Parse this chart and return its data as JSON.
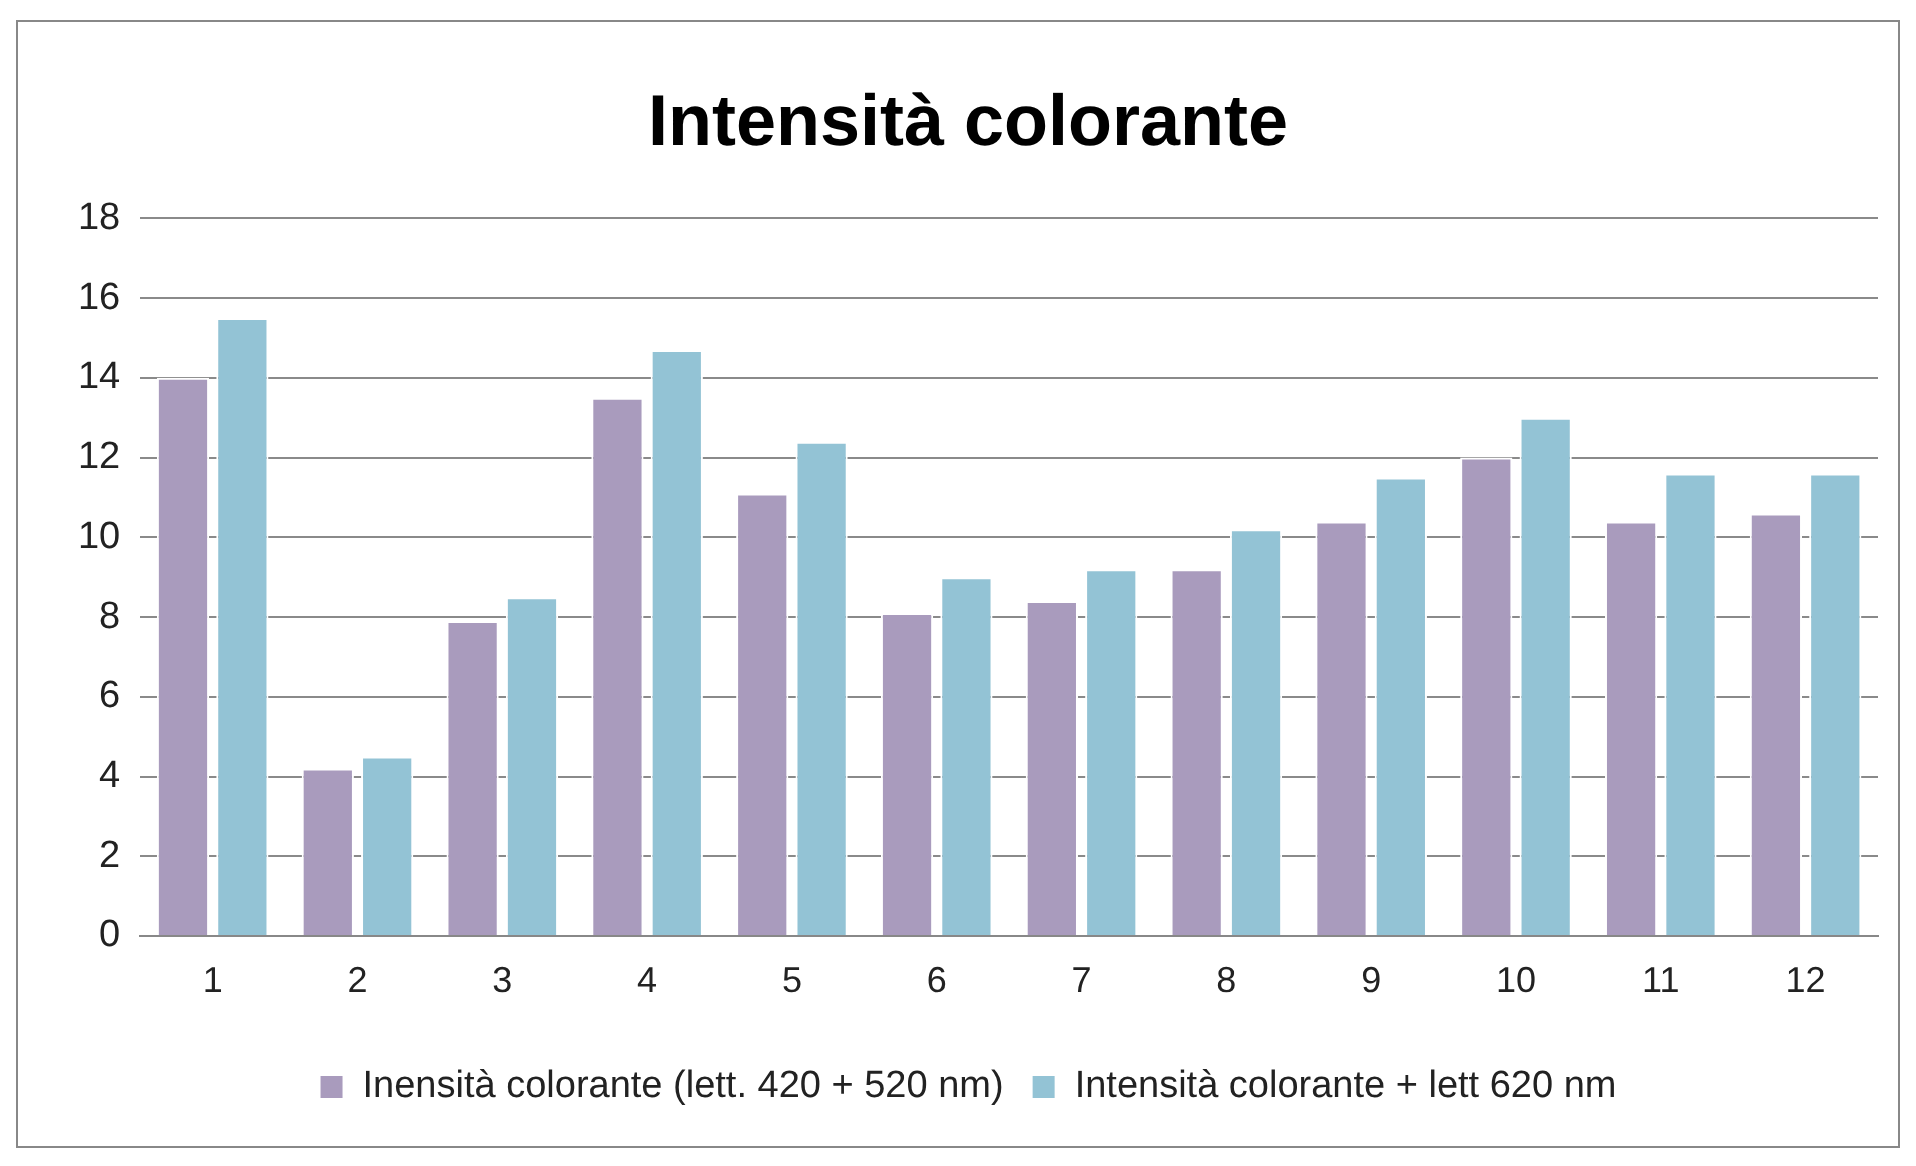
{
  "chart_data": {
    "type": "bar",
    "title": "Intensità colorante",
    "categories": [
      "1",
      "2",
      "3",
      "4",
      "5",
      "6",
      "7",
      "8",
      "9",
      "10",
      "11",
      "12"
    ],
    "series": [
      {
        "name": "Inensità colorante (lett. 420 + 520 nm)",
        "color": "#a99bbd",
        "values": [
          14.0,
          4.2,
          7.9,
          13.5,
          11.1,
          8.1,
          8.4,
          9.2,
          10.4,
          12.0,
          10.4,
          10.6
        ]
      },
      {
        "name": "Intensità colorante + lett 620 nm",
        "color": "#93c3d5",
        "values": [
          15.5,
          4.5,
          8.5,
          14.7,
          12.4,
          9.0,
          9.2,
          10.2,
          11.5,
          13.0,
          11.6,
          11.6
        ]
      }
    ],
    "ylim": [
      0,
      18
    ],
    "yticks": [
      0,
      2,
      4,
      6,
      8,
      10,
      12,
      14,
      16,
      18
    ],
    "grid": "y",
    "legend": "bottom"
  }
}
